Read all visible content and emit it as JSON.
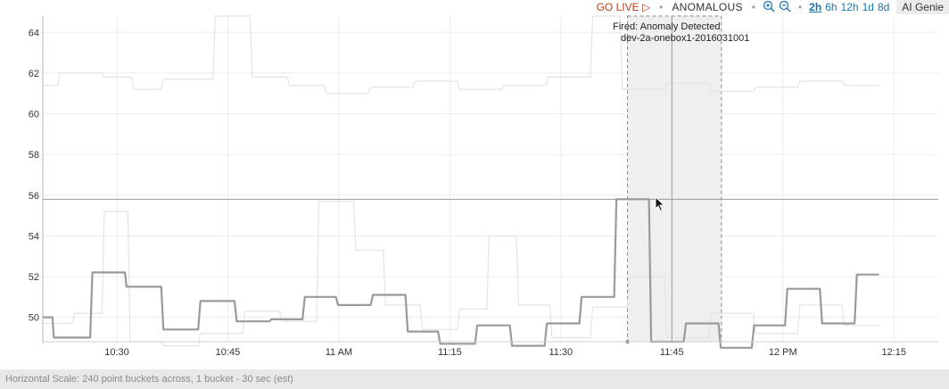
{
  "toolbar": {
    "go_live": "GO LIVE",
    "go_live_icon": "play-outline-icon",
    "separator": "•",
    "anomalous": "ANOMALOUS",
    "zoom_in_icon": "zoom-in-icon",
    "zoom_out_icon": "zoom-out-icon",
    "ranges": [
      "2h",
      "6h",
      "12h",
      "1d",
      "8d"
    ],
    "active_range": "2h",
    "ai_genie": "AI Genie"
  },
  "tooltip": {
    "title": "Fired: Anomaly Detected",
    "subtitle": "dev-2a-onebox1-2016031001"
  },
  "footer": {
    "text": "Horizontal Scale: 240 point buckets across, 1 bucket - 30 sec (est)"
  },
  "colors": {
    "main_series": "#9a9a9a",
    "faint_series": "#e4e4e4",
    "highlight_fill": "#efefef",
    "go_live": "#b7411a",
    "link": "#1a73a8"
  },
  "chart_data": {
    "type": "line",
    "xlabel": "",
    "ylabel": "",
    "ylim": [
      48.8,
      64.8
    ],
    "y_ticks": [
      50,
      52,
      54,
      56,
      58,
      60,
      62,
      64
    ],
    "x_ticks": [
      {
        "t": 30,
        "label": "10:30"
      },
      {
        "t": 45,
        "label": "10:45"
      },
      {
        "t": 60,
        "label": "11 AM"
      },
      {
        "t": 75,
        "label": "11:15"
      },
      {
        "t": 90,
        "label": "11:30"
      },
      {
        "t": 105,
        "label": "11:45"
      },
      {
        "t": 120,
        "label": "12 PM"
      },
      {
        "t": 135,
        "label": "12:15"
      }
    ],
    "x_unit": "minutes after 10:00",
    "xlim": [
      20,
      141
    ],
    "threshold": 55.8,
    "cursor_time": 105,
    "highlight_range": [
      99.0,
      111.7
    ],
    "grid": true,
    "series": [
      {
        "values": [
          [
            20,
            50.0
          ],
          [
            21.3,
            50.0
          ],
          [
            21.5,
            49.0
          ],
          [
            26.4,
            49.0
          ],
          [
            26.7,
            52.2
          ],
          [
            31.1,
            52.2
          ],
          [
            31.3,
            51.5
          ],
          [
            36.0,
            51.5
          ],
          [
            36.3,
            49.4
          ],
          [
            41.0,
            49.4
          ],
          [
            41.3,
            50.8
          ],
          [
            45.9,
            50.8
          ],
          [
            46.2,
            49.8
          ],
          [
            50.6,
            49.8
          ],
          [
            50.9,
            49.9
          ],
          [
            55.1,
            49.9
          ],
          [
            55.4,
            51.0
          ],
          [
            59.6,
            51.0
          ],
          [
            59.9,
            50.6
          ],
          [
            64.3,
            50.6
          ],
          [
            64.6,
            51.1
          ],
          [
            69.0,
            51.1
          ],
          [
            69.3,
            49.3
          ],
          [
            73.4,
            49.3
          ],
          [
            73.7,
            48.7
          ],
          [
            78.4,
            48.7
          ],
          [
            78.7,
            49.6
          ],
          [
            83.1,
            49.6
          ],
          [
            83.4,
            48.6
          ],
          [
            87.8,
            48.6
          ],
          [
            88.1,
            49.7
          ],
          [
            92.5,
            49.7
          ],
          [
            92.8,
            51.0
          ],
          [
            97.2,
            51.0
          ],
          [
            97.5,
            55.8
          ],
          [
            101.9,
            55.8
          ],
          [
            102.2,
            48.8
          ],
          [
            106.6,
            48.8
          ],
          [
            106.9,
            49.7
          ],
          [
            111.3,
            49.7
          ],
          [
            111.6,
            48.5
          ],
          [
            115.8,
            48.5
          ],
          [
            116.1,
            49.6
          ],
          [
            120.3,
            49.6
          ],
          [
            120.6,
            51.4
          ],
          [
            125.0,
            51.4
          ],
          [
            125.3,
            49.7
          ],
          [
            129.7,
            49.7
          ],
          [
            130.0,
            52.1
          ],
          [
            133.0,
            52.1
          ]
        ]
      },
      {
        "values": [
          [
            20,
            61.4
          ],
          [
            22,
            61.4
          ],
          [
            22.3,
            62.0
          ],
          [
            28,
            62.0
          ],
          [
            28.3,
            61.8
          ],
          [
            32,
            61.8
          ],
          [
            32.3,
            61.2
          ],
          [
            36,
            61.2
          ],
          [
            36.3,
            61.7
          ],
          [
            43,
            61.7
          ],
          [
            43.3,
            64.8
          ],
          [
            48,
            64.8
          ],
          [
            48.3,
            61.8
          ],
          [
            53,
            61.8
          ],
          [
            53.3,
            61.4
          ],
          [
            58,
            61.4
          ],
          [
            58.3,
            61.0
          ],
          [
            64,
            61.0
          ],
          [
            64.3,
            61.3
          ],
          [
            70,
            61.3
          ],
          [
            70.3,
            61.6
          ],
          [
            76,
            61.6
          ],
          [
            76.3,
            61.2
          ],
          [
            82,
            61.2
          ],
          [
            82.3,
            61.4
          ],
          [
            88,
            61.4
          ],
          [
            88.3,
            61.8
          ],
          [
            94,
            61.8
          ],
          [
            94.3,
            64.8
          ],
          [
            98,
            64.8
          ],
          [
            98.3,
            61.2
          ],
          [
            104,
            61.2
          ],
          [
            104.3,
            61.5
          ],
          [
            110,
            61.5
          ],
          [
            110.3,
            61.1
          ],
          [
            116,
            61.1
          ],
          [
            116.3,
            61.3
          ],
          [
            122,
            61.3
          ],
          [
            122.3,
            61.6
          ],
          [
            128,
            61.6
          ],
          [
            128.3,
            61.4
          ],
          [
            133,
            61.4
          ]
        ]
      },
      {
        "values": [
          [
            20,
            49.7
          ],
          [
            24,
            49.7
          ],
          [
            24.3,
            50.2
          ],
          [
            28,
            50.2
          ],
          [
            28.3,
            55.2
          ],
          [
            31.5,
            55.2
          ],
          [
            31.8,
            48.8
          ],
          [
            36,
            48.8
          ],
          [
            36.3,
            48.6
          ],
          [
            41,
            48.6
          ],
          [
            41.3,
            49.2
          ],
          [
            47,
            49.2
          ],
          [
            47.3,
            50.3
          ],
          [
            52,
            50.3
          ],
          [
            52.3,
            49.8
          ],
          [
            57,
            49.8
          ],
          [
            57.3,
            55.7
          ],
          [
            62,
            55.7
          ],
          [
            62.3,
            53.3
          ],
          [
            66,
            53.3
          ],
          [
            66.3,
            50.6
          ],
          [
            71,
            50.6
          ],
          [
            71.3,
            49.4
          ],
          [
            76,
            49.4
          ],
          [
            76.3,
            50.4
          ],
          [
            80,
            50.4
          ],
          [
            80.3,
            54.0
          ],
          [
            84,
            54.0
          ],
          [
            84.3,
            50.6
          ],
          [
            88.5,
            50.6
          ],
          [
            88.8,
            49.0
          ],
          [
            94,
            49.0
          ],
          [
            94.3,
            50.5
          ],
          [
            99,
            50.5
          ],
          [
            99.3,
            52.0
          ],
          [
            104,
            52.0
          ],
          [
            104.3,
            49.0
          ],
          [
            110,
            49.0
          ],
          [
            110.3,
            50.2
          ],
          [
            116,
            50.2
          ],
          [
            116.3,
            49.2
          ],
          [
            122,
            49.2
          ],
          [
            122.3,
            50.6
          ],
          [
            128,
            50.6
          ],
          [
            128.3,
            49.6
          ],
          [
            133,
            49.6
          ]
        ]
      }
    ]
  }
}
